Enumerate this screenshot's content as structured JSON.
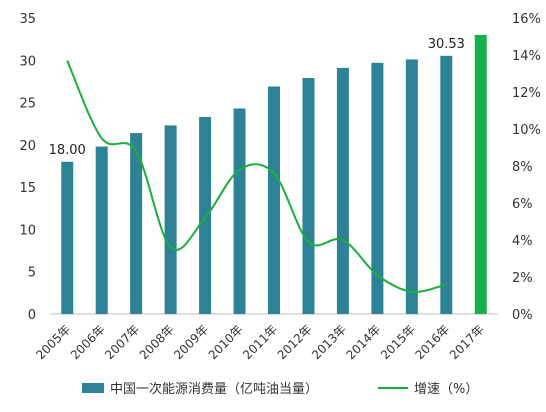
{
  "chart_data": {
    "type": "bar",
    "categories": [
      "2005年",
      "2006年",
      "2007年",
      "2008年",
      "2009年",
      "2010年",
      "2011年",
      "2012年",
      "2013年",
      "2014年",
      "2015年",
      "2016年",
      "2017年"
    ],
    "series": [
      {
        "name": "中国一次能源消费量（亿吨油当量）",
        "type": "bar",
        "axis": "left",
        "values": [
          18.0,
          19.8,
          21.4,
          22.3,
          23.3,
          24.3,
          26.9,
          27.9,
          29.1,
          29.7,
          30.1,
          30.53,
          33.0
        ],
        "color": "#2e8296",
        "highlight_last_color": "#14b14e"
      },
      {
        "name": "增速（%）",
        "type": "line",
        "axis": "right",
        "values": [
          13.7,
          9.5,
          8.8,
          3.6,
          5.2,
          7.8,
          7.6,
          3.9,
          4.0,
          2.1,
          1.2,
          1.6,
          null
        ],
        "color": "#19b03a"
      }
    ],
    "data_labels": [
      {
        "index": 0,
        "text": "18.00"
      },
      {
        "index": 11,
        "text": "30.53"
      }
    ],
    "y_left": {
      "min": 0,
      "max": 35,
      "ticks": [
        "0",
        "5",
        "10",
        "15",
        "20",
        "25",
        "30",
        "35"
      ]
    },
    "y_right": {
      "min": 0,
      "max": 16,
      "ticks": [
        "0%",
        "2%",
        "4%",
        "6%",
        "8%",
        "10%",
        "12%",
        "14%",
        "16%"
      ]
    },
    "grid": false,
    "legend_position": "bottom"
  }
}
